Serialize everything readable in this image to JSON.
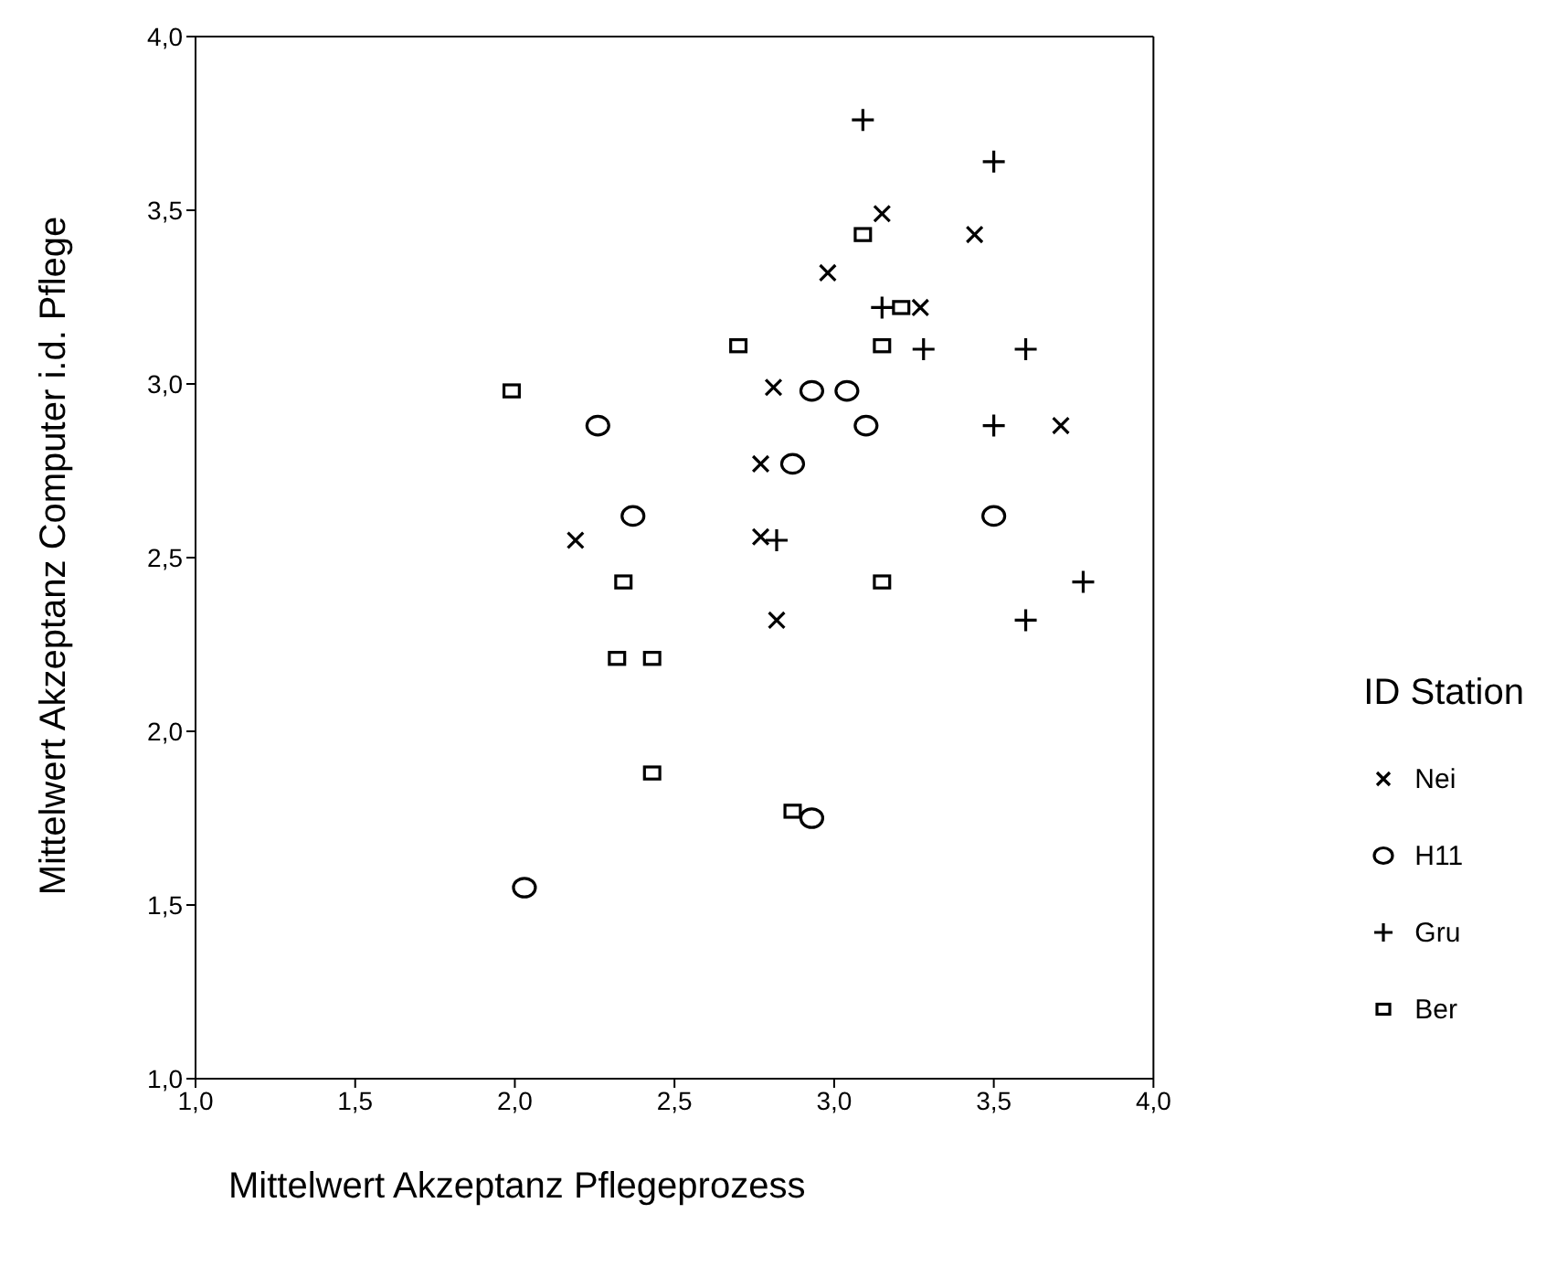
{
  "chart_data": {
    "type": "scatter",
    "xlabel": "Mittelwert Akzeptanz Pflegeprozess",
    "ylabel": "Mittelwert Akzeptanz Computer i.d. Pflege",
    "legend_title": "ID Station",
    "series": [
      {
        "name": "Nei",
        "color": "#000000",
        "marker": "x",
        "x": [
          3.15,
          2.98,
          2.81,
          2.77,
          2.77,
          2.19,
          2.82,
          3.44,
          3.27,
          3.71
        ],
        "values": [
          3.49,
          3.32,
          2.99,
          2.77,
          2.56,
          2.55,
          2.32,
          3.43,
          3.22,
          2.88
        ]
      },
      {
        "name": "H11",
        "color": "#000000",
        "marker": "circle",
        "x": [
          2.93,
          3.04,
          2.26,
          2.87,
          2.37,
          3.1,
          3.5,
          2.93,
          2.03
        ],
        "values": [
          2.98,
          2.98,
          2.88,
          2.77,
          2.62,
          2.88,
          2.62,
          1.75,
          1.55
        ]
      },
      {
        "name": "Gru",
        "color": "#000000",
        "marker": "cross",
        "x": [
          3.09,
          3.5,
          3.15,
          3.28,
          3.6,
          3.5,
          3.78,
          3.6,
          2.82
        ],
        "values": [
          3.76,
          3.64,
          3.22,
          3.1,
          3.1,
          2.88,
          2.43,
          2.32,
          2.55
        ]
      },
      {
        "name": "Ber",
        "color": "#000000",
        "marker": "square",
        "x": [
          3.09,
          2.7,
          1.99,
          2.34,
          3.21,
          3.15,
          3.15,
          2.32,
          2.43,
          2.43,
          2.87
        ],
        "values": [
          3.43,
          3.11,
          2.98,
          2.43,
          3.22,
          3.11,
          2.43,
          2.21,
          2.21,
          1.88,
          1.77
        ]
      }
    ],
    "xlim": [
      1,
      4
    ],
    "xticks": [
      {
        "value": 1,
        "label": "1,0"
      },
      {
        "value": 1.5,
        "label": "1,5"
      },
      {
        "value": 2,
        "label": "2,0"
      },
      {
        "value": 2.5,
        "label": "2,5"
      },
      {
        "value": 3,
        "label": "3,0"
      },
      {
        "value": 3.5,
        "label": "3,5"
      },
      {
        "value": 4,
        "label": "4,0"
      }
    ],
    "ylim": [
      1,
      4
    ],
    "yticks": [
      {
        "value": 1,
        "label": "1,0"
      },
      {
        "value": 1.5,
        "label": "1,5"
      },
      {
        "value": 2,
        "label": "2,0"
      },
      {
        "value": 2.5,
        "label": "2,5"
      },
      {
        "value": 3,
        "label": "3,0"
      },
      {
        "value": 3.5,
        "label": "3,5"
      },
      {
        "value": 4,
        "label": "4,0"
      }
    ],
    "grid": false,
    "legend": "right"
  }
}
